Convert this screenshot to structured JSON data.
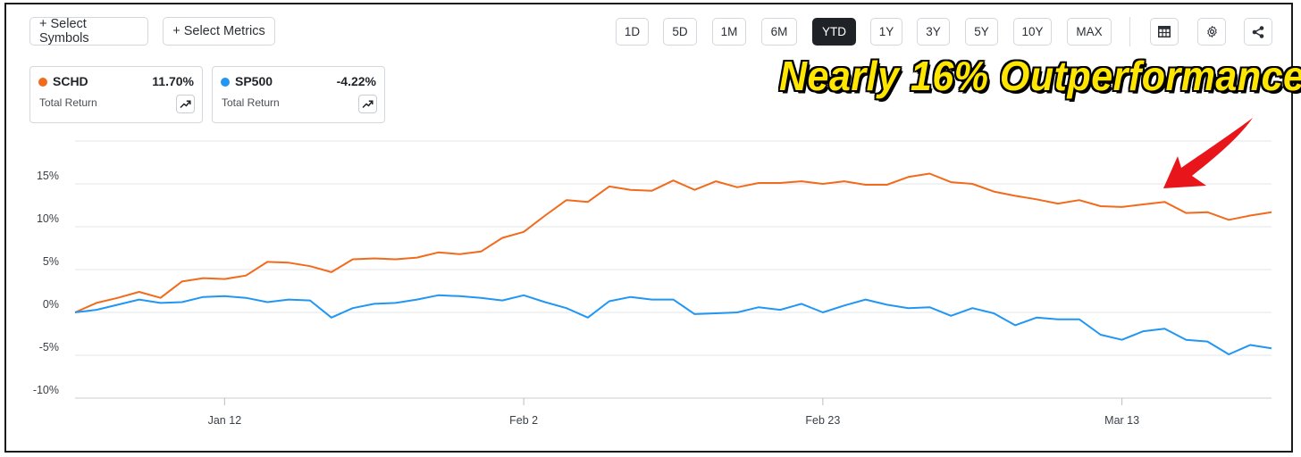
{
  "toolbar": {
    "select_symbols": "+ Select Symbols",
    "select_metrics": "+ Select Metrics",
    "ranges": [
      "1D",
      "5D",
      "1M",
      "6M",
      "YTD",
      "1Y",
      "3Y",
      "5Y",
      "10Y",
      "MAX"
    ],
    "active_range": "YTD",
    "icons": [
      "table-icon",
      "gear-icon",
      "share-icon"
    ]
  },
  "cards": [
    {
      "symbol": "SCHD",
      "value": "11.70%",
      "label": "Total Return",
      "color": "#f26a1b"
    },
    {
      "symbol": "SP500",
      "value": "-4.22%",
      "label": "Total Return",
      "color": "#2196f3"
    }
  ],
  "annotation": "Nearly 16% Outperformance",
  "annotation_colors": {
    "text": "#ffe600",
    "outline": "#000000",
    "arrow": "#e8161b"
  },
  "chart_data": {
    "type": "line",
    "title": "",
    "xlabel": "",
    "ylabel": "",
    "ylim": [
      -10,
      20
    ],
    "y_ticks": [
      "15%",
      "10%",
      "5%",
      "0%",
      "-5%",
      "-10%"
    ],
    "x_ticks": [
      "Jan 12",
      "Feb 2",
      "Feb 23",
      "Mar 13"
    ],
    "grid": true,
    "series": [
      {
        "name": "SCHD",
        "color": "#f26a1b",
        "values": [
          0,
          1.1,
          1.7,
          2.4,
          1.7,
          3.6,
          4.0,
          3.9,
          4.3,
          5.9,
          5.8,
          5.4,
          4.7,
          6.2,
          6.3,
          6.2,
          6.4,
          7.0,
          6.8,
          7.1,
          8.7,
          9.4,
          11.3,
          13.1,
          12.9,
          14.7,
          14.3,
          14.2,
          15.4,
          14.3,
          15.3,
          14.6,
          15.1,
          15.1,
          15.3,
          15.0,
          15.3,
          14.9,
          14.9,
          15.8,
          16.2,
          15.2,
          15.0,
          14.1,
          13.6,
          13.2,
          12.7,
          13.1,
          12.4,
          12.3,
          12.6,
          12.9,
          11.6,
          11.7,
          10.8,
          11.3,
          11.7
        ]
      },
      {
        "name": "SP500",
        "color": "#2196f3",
        "values": [
          0,
          0.3,
          0.9,
          1.5,
          1.1,
          1.2,
          1.8,
          1.9,
          1.7,
          1.2,
          1.5,
          1.4,
          -0.6,
          0.5,
          1.0,
          1.1,
          1.5,
          2.0,
          1.9,
          1.7,
          1.4,
          2.0,
          1.2,
          0.5,
          -0.6,
          1.3,
          1.8,
          1.5,
          1.5,
          -0.2,
          -0.1,
          0.0,
          0.6,
          0.3,
          1.0,
          0.0,
          0.8,
          1.5,
          0.9,
          0.5,
          0.6,
          -0.4,
          0.5,
          -0.1,
          -1.5,
          -0.6,
          -0.8,
          -0.8,
          -2.6,
          -3.2,
          -2.2,
          -1.9,
          -3.2,
          -3.4,
          -4.9,
          -3.8,
          -4.2
        ]
      }
    ]
  }
}
